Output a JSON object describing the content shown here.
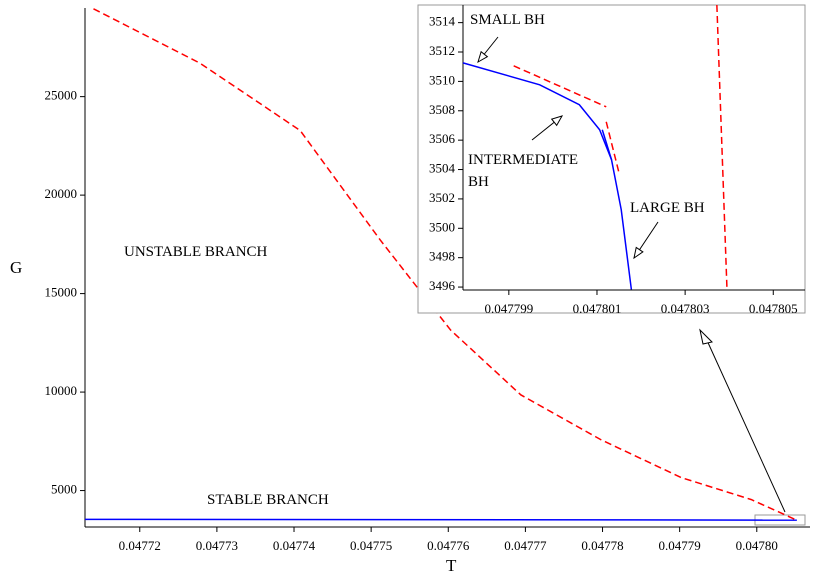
{
  "chart_data": [
    {
      "type": "line",
      "x_label": "T",
      "y_label": "G",
      "annotations": [
        "UNSTABLE BRANCH",
        "STABLE BRANCH"
      ],
      "xlim": [
        0.0477129,
        0.0478069
      ],
      "ylim": [
        3150,
        29500
      ],
      "xticks": [
        0.04772,
        0.04773,
        0.04774,
        0.04775,
        0.04776,
        0.04777,
        0.04778,
        0.04779,
        {
          "value": 0.0478,
          "label": "0.04780"
        }
      ],
      "yticks": [
        5000,
        10000,
        15000,
        20000,
        25000
      ],
      "series": [
        {
          "color": "#0000ff",
          "line_style": "solid",
          "x": [
            0.0477129,
            0.0478052
          ],
          "values": [
            3540,
            3500
          ]
        },
        {
          "color": "#ff0000",
          "line_style": "dashed",
          "x": [
            0.047714,
            0.0477278,
            0.0477408,
            0.0477512,
            0.0477603,
            0.0477694,
            0.0477798,
            0.0477902,
            0.0477993,
            0.0478052
          ],
          "values": [
            29460,
            26700,
            23280,
            17710,
            13150,
            9860,
            7580,
            5660,
            4540,
            3496
          ]
        }
      ]
    },
    {
      "type": "line",
      "annotations": [
        "SMALL BH",
        "INTERMEDIATE\nBH",
        "LARGE BH"
      ],
      "xlim": [
        0.04779796,
        0.04780572
      ],
      "ylim": [
        3495.8,
        3515.2
      ],
      "xticks": [
        0.047799,
        0.047801,
        0.047803,
        0.047805
      ],
      "yticks": [
        3496,
        3498,
        3500,
        3502,
        3504,
        3506,
        3508,
        3510,
        3512,
        3514
      ],
      "series": [
        {
          "color": "#0000ff",
          "line_style": "solid",
          "x": [
            0.04779796,
            0.0477997,
            0.0478006,
            0.04780106,
            0.04780133,
            0.04780155,
            0.04780178
          ],
          "values": [
            3511.26,
            3509.77,
            3508.41,
            3506.71,
            3504.67,
            3501.27,
            3495.84
          ]
        },
        {
          "color": "#0000ff",
          "line_style": "solid",
          "x": [
            0.04780112,
            0.04780133
          ],
          "values": [
            3506.71,
            3504.67
          ]
        },
        {
          "color": "#ff0000",
          "line_style": "dashed",
          "x": [
            0.04779911,
            0.04780121
          ],
          "values": [
            3511.06,
            3508.27
          ]
        },
        {
          "color": "#ff0000",
          "line_style": "dashed",
          "x": [
            0.04780121,
            0.04780151
          ],
          "values": [
            3507.25,
            3503.65
          ]
        },
        {
          "color": "#ff0000",
          "line_style": "dashed",
          "x": [
            0.04780372,
            0.04780395
          ],
          "values": [
            3515.2,
            3495.84
          ]
        }
      ]
    }
  ]
}
